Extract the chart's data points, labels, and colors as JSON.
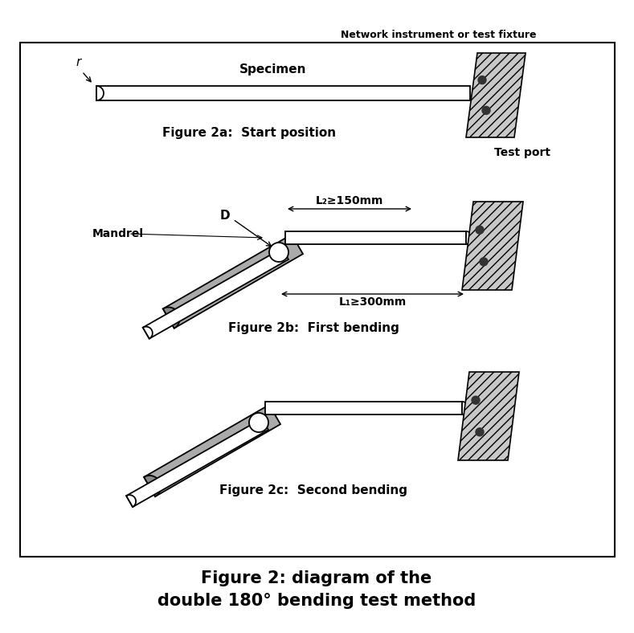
{
  "title_line1": "Figure 2: diagram of the",
  "title_line2": "double 180° bending test method",
  "title_fontsize": 15,
  "bg_color": "#ffffff",
  "fig_2a_caption": "Figure 2a:  Start position",
  "fig_2b_caption": "Figure 2b:  First bending",
  "fig_2c_caption": "Figure 2c:  Second bending",
  "label_specimen": "Specimen",
  "label_network": "Network instrument or test fixture",
  "label_testport": "Test port",
  "label_mandrel": "Mandrel",
  "label_D": "D",
  "label_r": "r",
  "label_L2": "L₂≥150mm",
  "label_L1": "L₁≥300mm",
  "hatch_color": "#aaaaaa",
  "caption_fontsize": 10,
  "label_fontsize": 9,
  "small_fontsize": 8
}
